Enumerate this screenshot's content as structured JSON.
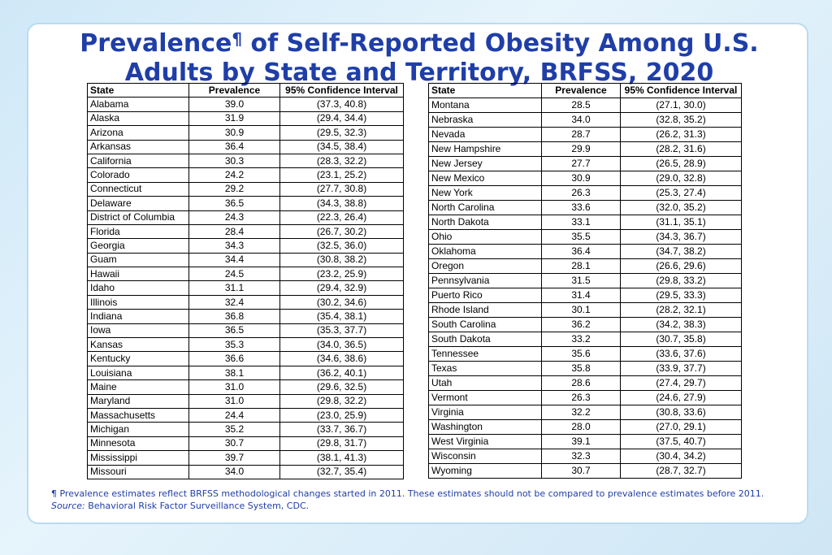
{
  "title": {
    "part1": "Prevalence",
    "mark": "¶",
    "part2": " of Self-Reported Obesity Among U.S.",
    "line2": "Adults by State and Territory, BRFSS, 2020"
  },
  "columns": [
    "State",
    "Prevalence",
    "95% Confidence Interval"
  ],
  "left_rows": [
    [
      "Alabama",
      "39.0",
      "(37.3, 40.8)"
    ],
    [
      "Alaska",
      "31.9",
      "(29.4, 34.4)"
    ],
    [
      "Arizona",
      "30.9",
      "(29.5, 32.3)"
    ],
    [
      "Arkansas",
      "36.4",
      "(34.5, 38.4)"
    ],
    [
      "California",
      "30.3",
      "(28.3, 32.2)"
    ],
    [
      "Colorado",
      "24.2",
      "(23.1, 25.2)"
    ],
    [
      "Connecticut",
      "29.2",
      "(27.7, 30.8)"
    ],
    [
      "Delaware",
      "36.5",
      "(34.3, 38.8)"
    ],
    [
      "District of Columbia",
      "24.3",
      "(22.3, 26.4)"
    ],
    [
      "Florida",
      "28.4",
      "(26.7, 30.2)"
    ],
    [
      "Georgia",
      "34.3",
      "(32.5, 36.0)"
    ],
    [
      "Guam",
      "34.4",
      "(30.8, 38.2)"
    ],
    [
      "Hawaii",
      "24.5",
      "(23.2, 25.9)"
    ],
    [
      "Idaho",
      "31.1",
      "(29.4, 32.9)"
    ],
    [
      "Illinois",
      "32.4",
      "(30.2, 34.6)"
    ],
    [
      "Indiana",
      "36.8",
      "(35.4, 38.1)"
    ],
    [
      "Iowa",
      "36.5",
      "(35.3, 37.7)"
    ],
    [
      "Kansas",
      "35.3",
      "(34.0, 36.5)"
    ],
    [
      "Kentucky",
      "36.6",
      "(34.6, 38.6)"
    ],
    [
      "Louisiana",
      "38.1",
      "(36.2, 40.1)"
    ],
    [
      "Maine",
      "31.0",
      "(29.6, 32.5)"
    ],
    [
      "Maryland",
      "31.0",
      "(29.8, 32.2)"
    ],
    [
      "Massachusetts",
      "24.4",
      "(23.0, 25.9)"
    ],
    [
      "Michigan",
      "35.2",
      "(33.7, 36.7)"
    ],
    [
      "Minnesota",
      "30.7",
      "(29.8, 31.7)"
    ],
    [
      "Mississippi",
      "39.7",
      "(38.1, 41.3)"
    ],
    [
      "Missouri",
      "34.0",
      "(32.7, 35.4)"
    ]
  ],
  "right_rows": [
    [
      "Montana",
      "28.5",
      "(27.1, 30.0)"
    ],
    [
      "Nebraska",
      "34.0",
      "(32.8, 35.2)"
    ],
    [
      "Nevada",
      "28.7",
      "(26.2, 31.3)"
    ],
    [
      "New Hampshire",
      "29.9",
      "(28.2, 31.6)"
    ],
    [
      "New Jersey",
      "27.7",
      "(26.5, 28.9)"
    ],
    [
      "New Mexico",
      "30.9",
      "(29.0, 32.8)"
    ],
    [
      "New York",
      "26.3",
      "(25.3, 27.4)"
    ],
    [
      "North Carolina",
      "33.6",
      "(32.0, 35.2)"
    ],
    [
      "North Dakota",
      "33.1",
      "(31.1, 35.1)"
    ],
    [
      "Ohio",
      "35.5",
      "(34.3, 36.7)"
    ],
    [
      "Oklahoma",
      "36.4",
      "(34.7, 38.2)"
    ],
    [
      "Oregon",
      "28.1",
      "(26.6, 29.6)"
    ],
    [
      "Pennsylvania",
      "31.5",
      "(29.8, 33.2)"
    ],
    [
      "Puerto Rico",
      "31.4",
      "(29.5, 33.3)"
    ],
    [
      "Rhode Island",
      "30.1",
      "(28.2, 32.1)"
    ],
    [
      "South Carolina",
      "36.2",
      "(34.2, 38.3)"
    ],
    [
      "South Dakota",
      "33.2",
      "(30.7, 35.8)"
    ],
    [
      "Tennessee",
      "35.6",
      "(33.6, 37.6)"
    ],
    [
      "Texas",
      "35.8",
      "(33.9, 37.7)"
    ],
    [
      "Utah",
      "28.6",
      "(27.4, 29.7)"
    ],
    [
      "Vermont",
      "26.3",
      "(24.6, 27.9)"
    ],
    [
      "Virginia",
      "32.2",
      "(30.8, 33.6)"
    ],
    [
      "Washington",
      "28.0",
      "(27.0, 29.1)"
    ],
    [
      "West Virginia",
      "39.1",
      "(37.5, 40.7)"
    ],
    [
      "Wisconsin",
      "32.3",
      "(30.4, 34.2)"
    ],
    [
      "Wyoming",
      "30.7",
      "(28.7, 32.7)"
    ]
  ],
  "footnote": {
    "mark": "¶",
    "text": " Prevalence estimates reflect BRFSS methodological changes started in 2011. These estimates should not be compared to prevalence estimates before 2011.",
    "source_label": "Source:",
    "source_text": " Behavioral Risk Factor Surveillance System, CDC."
  },
  "colors": {
    "title": "#1f3ea8",
    "background": "#cfe8f7",
    "panel_border": "#b9dcef"
  }
}
